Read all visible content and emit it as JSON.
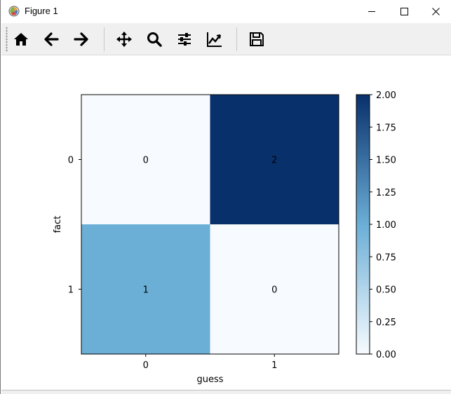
{
  "window": {
    "title": "Figure 1"
  },
  "toolbar": {
    "buttons": [
      {
        "name": "home-button",
        "icon": "home-icon"
      },
      {
        "name": "back-button",
        "icon": "arrow-left-icon"
      },
      {
        "name": "forward-button",
        "icon": "arrow-right-icon"
      },
      {
        "name": "pan-button",
        "icon": "move-icon"
      },
      {
        "name": "zoom-button",
        "icon": "magnifier-icon"
      },
      {
        "name": "subplots-button",
        "icon": "sliders-icon"
      },
      {
        "name": "edit-axes-button",
        "icon": "line-chart-icon"
      },
      {
        "name": "save-button",
        "icon": "floppy-disk-icon"
      }
    ]
  },
  "chart_data": {
    "type": "heatmap",
    "title": "",
    "xlabel": "guess",
    "ylabel": "fact",
    "x_ticks": [
      "0",
      "1"
    ],
    "y_ticks": [
      "0",
      "1"
    ],
    "values": [
      [
        0,
        2
      ],
      [
        1,
        0
      ]
    ],
    "cell_labels": [
      [
        "0",
        "2"
      ],
      [
        "1",
        "0"
      ]
    ],
    "colormap": "Blues",
    "colorbar": {
      "range": [
        0,
        2
      ],
      "ticks": [
        "0.00",
        "0.25",
        "0.50",
        "0.75",
        "1.00",
        "1.25",
        "1.50",
        "1.75",
        "2.00"
      ]
    },
    "colors": {
      "low": "#f7fbff",
      "mid": "#6baed6",
      "high": "#08306b"
    }
  }
}
